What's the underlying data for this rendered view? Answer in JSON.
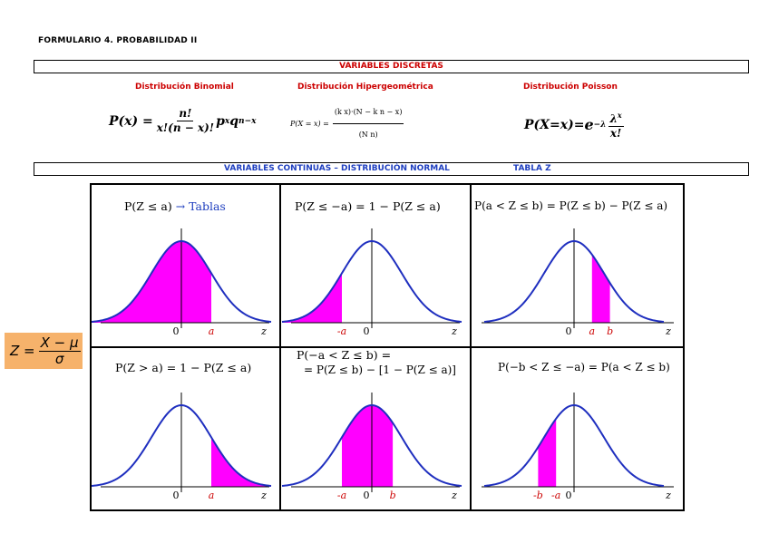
{
  "title": "FORMULARIO 4. PROBABILIDAD II",
  "discrete": {
    "header": "VARIABLES DISCRETAS",
    "binomial_title": "Distribución Binomial",
    "hyper_title": "Distribución Hipergeométrica",
    "poisson_title": "Distribución Poisson",
    "binomial_formula": {
      "lhs": "P(x) =",
      "num": "n!",
      "den": "x!(n − x)!",
      "tail": "p",
      "sup1": "x",
      "q": "q",
      "sup2": "n−x"
    },
    "hyper_formula": {
      "lhs": "P(X = x) =",
      "num": "(k x)·(N − k  n − x)",
      "den": "(N n)"
    },
    "poisson_formula": {
      "lhs": "P(X=x)=",
      "e": "e",
      "exp": "−λ",
      "num": "λ",
      "sup": "x",
      "den": "x!"
    }
  },
  "continuous": {
    "header": "VARIABLES CONTINUAS – DISTRIBUCIÓN NORMAL",
    "tabla": "TABLA Z"
  },
  "zscore": {
    "z": "Z =",
    "num": "X − μ",
    "den": "σ"
  },
  "colors": {
    "fill": "#ff00ff",
    "curve": "#1f2fbf",
    "red_label": "#cc0000",
    "blue_header": "#1f3fbf",
    "zbox": "#f6b26b"
  },
  "panels": [
    {
      "label": "P(Z ≤ a)",
      "label_extra": "→ Tablas",
      "ticks": [
        "0",
        "a"
      ],
      "axis": "z"
    },
    {
      "label": "P(Z ≤ −a) = 1 − P(Z ≤ a)",
      "ticks": [
        "-a",
        "0"
      ],
      "axis": "z"
    },
    {
      "label": "P(a < Z ≤ b) = P(Z ≤ b) − P(Z ≤ a)",
      "ticks": [
        "0",
        "a",
        "b"
      ],
      "axis": "z"
    },
    {
      "label": "P(Z > a) = 1 − P(Z ≤ a)",
      "ticks": [
        "0",
        "a"
      ],
      "axis": "z"
    },
    {
      "label": "P(−a < Z ≤ b) =",
      "label2": "= P(Z ≤ b) − [1 − P(Z ≤ a)]",
      "ticks": [
        "-a",
        "0",
        "b"
      ],
      "axis": "z"
    },
    {
      "label": "P(−b < Z ≤ −a) = P(a < Z ≤ b)",
      "ticks": [
        "-b",
        "-a",
        "0"
      ],
      "axis": "z"
    }
  ]
}
